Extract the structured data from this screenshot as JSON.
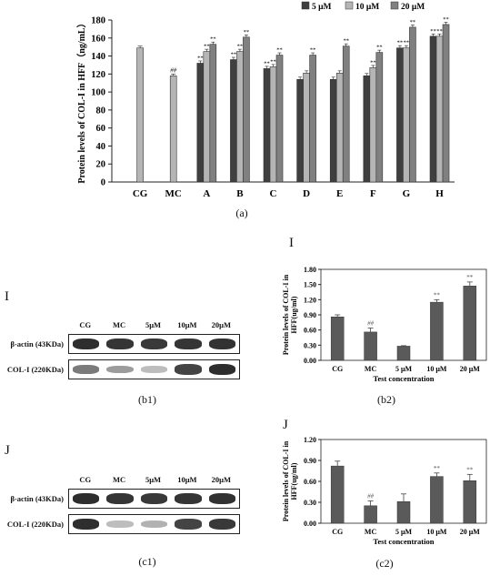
{
  "chart_data": [
    {
      "id": "a",
      "type": "bar",
      "panel_label": "(a)",
      "ylabel": "Protein levels of COL-I in HFF（ng/mL）",
      "ylim": [
        0,
        180
      ],
      "yticks": [
        "0",
        "20",
        "40",
        "60",
        "80",
        "100",
        "120",
        "140",
        "160",
        "180"
      ],
      "legend": [
        {
          "label": "5 μM",
          "color": "#3f3f3f"
        },
        {
          "label": "10 μM",
          "color": "#b5b5b5"
        },
        {
          "label": "20 μM",
          "color": "#808080"
        }
      ],
      "categories": [
        "CG",
        "MC",
        "A",
        "B",
        "C",
        "D",
        "E",
        "F",
        "G",
        "H"
      ],
      "controls": [
        {
          "category": "CG",
          "value": 149,
          "marker": ""
        },
        {
          "category": "MC",
          "value": 118,
          "marker": "##"
        }
      ],
      "series": [
        {
          "name": "5 μM",
          "values": [
            null,
            null,
            132,
            136,
            126,
            114,
            114,
            118,
            149,
            162
          ],
          "markers": [
            "",
            "",
            "**",
            "**",
            "**",
            "",
            "",
            "",
            "**",
            "**"
          ]
        },
        {
          "name": "10 μM",
          "values": [
            null,
            null,
            145,
            145,
            128,
            121,
            121,
            127,
            149,
            162
          ],
          "markers": [
            "",
            "",
            "**",
            "**",
            "**",
            "",
            "",
            "**",
            "**",
            "**"
          ]
        },
        {
          "name": "20 μM",
          "values": [
            null,
            null,
            153,
            161,
            141,
            141,
            151,
            144,
            172,
            175
          ],
          "markers": [
            "",
            "",
            "**",
            "**",
            "**",
            "**",
            "**",
            "**",
            "**",
            "**"
          ]
        }
      ],
      "grid": false
    },
    {
      "id": "b2",
      "type": "bar",
      "panel_label": "(b2)",
      "letter": "I",
      "ylabel": "Protein levels of COL-I in HFF(ug/ml)",
      "xlabel": "Test concentration",
      "ylim": [
        0,
        1.8
      ],
      "yticks": [
        "0.00",
        "0.30",
        "0.60",
        "0.90",
        "1.20",
        "1.50",
        "1.80"
      ],
      "categories": [
        "CG",
        "MC",
        "5 μM",
        "10 μM",
        "20 μM"
      ],
      "values": [
        0.86,
        0.56,
        0.28,
        1.15,
        1.47
      ],
      "errors": [
        0.04,
        0.08,
        0.01,
        0.05,
        0.08
      ],
      "markers": [
        "",
        "##",
        "",
        "**",
        "**"
      ],
      "grid": false
    },
    {
      "id": "c2",
      "type": "bar",
      "panel_label": "(c2)",
      "letter": "J",
      "ylabel": "Protein levels of COL-I in HFF(ug/ml)",
      "xlabel": "Test concentration",
      "ylim": [
        0,
        1.2
      ],
      "yticks": [
        "0.00",
        "0.30",
        "0.60",
        "0.90",
        "1.20"
      ],
      "categories": [
        "CG",
        "MC",
        "5 μM",
        "10 μM",
        "20 μM"
      ],
      "values": [
        0.82,
        0.25,
        0.31,
        0.67,
        0.61
      ],
      "errors": [
        0.07,
        0.07,
        0.11,
        0.05,
        0.09
      ],
      "markers": [
        "",
        "##",
        "",
        "**",
        "**"
      ],
      "grid": false
    }
  ],
  "blots": [
    {
      "id": "b1",
      "panel_label": "(b1)",
      "letter": "I",
      "lanes": [
        "CG",
        "MC",
        "5μM",
        "10μM",
        "20μM"
      ],
      "rows": [
        {
          "label": "β-actin (43KDa)",
          "intensity": [
            0.95,
            0.92,
            0.9,
            0.92,
            0.93
          ]
        },
        {
          "label": "COL-I (220KDa)",
          "intensity": [
            0.6,
            0.45,
            0.3,
            0.85,
            0.95
          ]
        }
      ]
    },
    {
      "id": "c1",
      "panel_label": "(c1)",
      "letter": "J",
      "lanes": [
        "CG",
        "MC",
        "5μM",
        "10μM",
        "20μM"
      ],
      "rows": [
        {
          "label": "β-actin (43KDa)",
          "intensity": [
            0.95,
            0.92,
            0.9,
            0.92,
            0.93
          ]
        },
        {
          "label": "COL-I (220KDa)",
          "intensity": [
            0.95,
            0.3,
            0.35,
            0.85,
            0.9
          ]
        }
      ]
    }
  ]
}
